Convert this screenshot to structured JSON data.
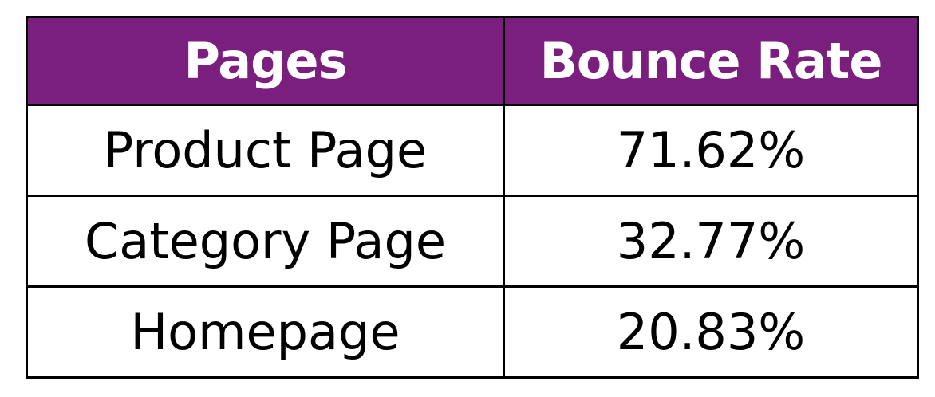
{
  "chart_data": {
    "type": "table",
    "columns": [
      "Pages",
      "Bounce Rate"
    ],
    "rows": [
      {
        "page": "Product Page",
        "bounce_rate": "71.62%"
      },
      {
        "page": "Category Page",
        "bounce_rate": "32.77%"
      },
      {
        "page": "Homepage",
        "bounce_rate": "20.83%"
      }
    ],
    "header_color": "#7B1F7E",
    "header_text_color": "#FFFFFF",
    "border_color": "#000000"
  }
}
